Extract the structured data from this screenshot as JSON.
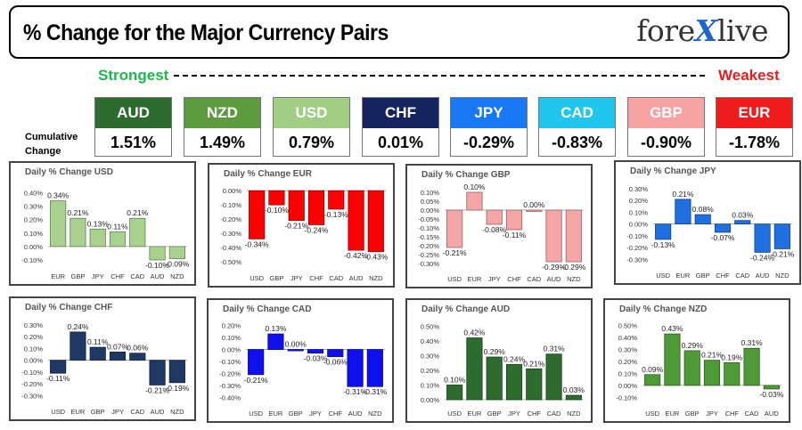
{
  "header": {
    "title": "% Change for the Major Currency Pairs",
    "logo_left": "fore",
    "logo_x": "X",
    "logo_right": "live"
  },
  "legend": {
    "strongest": "Strongest",
    "weakest": "Weakest",
    "cumulative_label": "Cumulative Change"
  },
  "cumulative": [
    {
      "currency": "AUD",
      "value": "1.51%",
      "color": "#2e6b2e"
    },
    {
      "currency": "NZD",
      "value": "1.49%",
      "color": "#5e9a40"
    },
    {
      "currency": "USD",
      "value": "0.79%",
      "color": "#a2cd84"
    },
    {
      "currency": "CHF",
      "value": "0.01%",
      "color": "#15245e"
    },
    {
      "currency": "JPY",
      "value": "-0.29%",
      "color": "#1877f2"
    },
    {
      "currency": "CAD",
      "value": "-0.83%",
      "color": "#20c6ee"
    },
    {
      "currency": "GBP",
      "value": "-0.90%",
      "color": "#f7a3a3"
    },
    {
      "currency": "EUR",
      "value": "-1.78%",
      "color": "#ee1c1c"
    }
  ],
  "chart_data": [
    {
      "type": "bar",
      "title": "Daily % Change USD",
      "color": "#a9d18e",
      "categories": [
        "EUR",
        "GBP",
        "JPY",
        "CHF",
        "CAD",
        "AUD",
        "NZD"
      ],
      "values": [
        0.34,
        0.21,
        0.13,
        0.11,
        0.21,
        -0.1,
        -0.09
      ],
      "labels": [
        "0.34%",
        "0.21%",
        "0.13%",
        "0.11%",
        "0.21%",
        "-0.10%",
        "-0.09%"
      ],
      "yticks": [
        0.4,
        0.3,
        0.2,
        0.1,
        0.0,
        -0.1
      ],
      "ytick_labels": [
        "0.40%",
        "0.30%",
        "0.20%",
        "0.10%",
        "0.00%",
        "-0.10%"
      ],
      "ylim": [
        -0.12,
        0.45
      ]
    },
    {
      "type": "bar",
      "title": "Daily % Change EUR",
      "color": "#ff0000",
      "categories": [
        "USD",
        "GBP",
        "JPY",
        "CHF",
        "CAD",
        "AUD",
        "NZD"
      ],
      "values": [
        -0.34,
        -0.1,
        -0.21,
        -0.24,
        -0.13,
        -0.42,
        -0.43
      ],
      "labels": [
        "-0.34%",
        "-0.10%",
        "-0.21%",
        "-0.24%",
        "-0.13%",
        "-0.42%",
        "-0.43%"
      ],
      "yticks": [
        0.0,
        -0.1,
        -0.2,
        -0.3,
        -0.4,
        -0.5
      ],
      "ytick_labels": [
        "0.00%",
        "-0.10%",
        "-0.20%",
        "-0.30%",
        "-0.40%",
        "-0.50%"
      ],
      "ylim": [
        -0.52,
        0.02
      ]
    },
    {
      "type": "bar",
      "title": "Daily % Change GBP",
      "color": "#f4a6a6",
      "categories": [
        "USD",
        "EUR",
        "JPY",
        "CHF",
        "CAD",
        "AUD",
        "NZD"
      ],
      "values": [
        -0.21,
        0.1,
        -0.08,
        -0.11,
        0.0,
        -0.29,
        -0.29
      ],
      "labels": [
        "-0.21%",
        "0.10%",
        "-0.08%",
        "-0.11%",
        "0.00%",
        "-0.29%",
        "-0.29%"
      ],
      "yticks": [
        0.1,
        0.05,
        0.0,
        -0.05,
        -0.1,
        -0.15,
        -0.2,
        -0.25,
        -0.3
      ],
      "ytick_labels": [
        "0.10%",
        "0.05%",
        "0.00%",
        "-0.05%",
        "-0.10%",
        "-0.15%",
        "-0.20%",
        "-0.25%",
        "-0.30%"
      ],
      "ylim": [
        -0.31,
        0.12
      ]
    },
    {
      "type": "bar",
      "title": "Daily % Change JPY",
      "color": "#1f6fe0",
      "categories": [
        "USD",
        "EUR",
        "GBP",
        "CHF",
        "CAD",
        "AUD",
        "NZD"
      ],
      "values": [
        -0.13,
        0.21,
        0.08,
        -0.07,
        0.03,
        -0.24,
        -0.21
      ],
      "labels": [
        "-0.13%",
        "0.21%",
        "0.08%",
        "-0.07%",
        "0.03%",
        "-0.24%",
        "-0.21%"
      ],
      "yticks": [
        0.3,
        0.2,
        0.1,
        0.0,
        -0.1,
        -0.2,
        -0.3
      ],
      "ytick_labels": [
        "0.30%",
        "0.20%",
        "0.10%",
        "0.00%",
        "-0.10%",
        "-0.20%",
        "-0.30%"
      ],
      "ylim": [
        -0.32,
        0.33
      ]
    },
    {
      "type": "bar",
      "title": "Daily % Change CHF",
      "color": "#1f3864",
      "categories": [
        "USD",
        "EUR",
        "GBP",
        "JPY",
        "CAD",
        "AUD",
        "NZD"
      ],
      "values": [
        -0.11,
        0.24,
        0.11,
        0.07,
        0.06,
        -0.21,
        -0.19
      ],
      "labels": [
        "-0.11%",
        "0.24%",
        "0.11%",
        "0.07%",
        "0.06%",
        "-0.21%",
        "-0.19%"
      ],
      "yticks": [
        0.3,
        0.2,
        0.1,
        0.0,
        -0.1,
        -0.2,
        -0.3
      ],
      "ytick_labels": [
        "0.30%",
        "0.20%",
        "0.10%",
        "0.00%",
        "-0.10%",
        "-0.20%",
        "-0.30%"
      ],
      "ylim": [
        -0.32,
        0.33
      ]
    },
    {
      "type": "bar",
      "title": "Daily % Change CAD",
      "color": "#1010ee",
      "categories": [
        "USD",
        "EUR",
        "GBP",
        "JPY",
        "CHF",
        "AUD",
        "NZD"
      ],
      "values": [
        -0.21,
        0.13,
        0.0,
        -0.03,
        -0.06,
        -0.31,
        -0.31
      ],
      "labels": [
        "-0.21%",
        "0.13%",
        "0.00%",
        "-0.03%",
        "-0.06%",
        "-0.31%",
        "-0.31%"
      ],
      "yticks": [
        0.2,
        0.1,
        0.0,
        -0.1,
        -0.2,
        -0.3,
        -0.4
      ],
      "ytick_labels": [
        "0.20%",
        "0.10%",
        "0.00%",
        "-0.10%",
        "-0.20%",
        "-0.30%",
        "-0.40%"
      ],
      "ylim": [
        -0.42,
        0.22
      ]
    },
    {
      "type": "bar",
      "title": "Daily % Change AUD",
      "color": "#2e6b2e",
      "categories": [
        "USD",
        "EUR",
        "GBP",
        "JPY",
        "CHF",
        "CAD",
        "NZD"
      ],
      "values": [
        0.1,
        0.42,
        0.29,
        0.24,
        0.21,
        0.31,
        0.03
      ],
      "labels": [
        "0.10%",
        "0.42%",
        "0.29%",
        "0.24%",
        "0.21%",
        "0.31%",
        "0.03%"
      ],
      "yticks": [
        0.5,
        0.4,
        0.3,
        0.2,
        0.1,
        0.0
      ],
      "ytick_labels": [
        "0.50%",
        "0.40%",
        "0.30%",
        "0.20%",
        "0.10%",
        "0.00%"
      ],
      "ylim": [
        0.0,
        0.52
      ]
    },
    {
      "type": "bar",
      "title": "Daily % Change NZD",
      "color": "#4e9a36",
      "categories": [
        "USD",
        "EUR",
        "GBP",
        "JPY",
        "CHF",
        "CAD",
        "AUD"
      ],
      "values": [
        0.09,
        0.43,
        0.29,
        0.21,
        0.19,
        0.31,
        -0.03
      ],
      "labels": [
        "0.09%",
        "0.43%",
        "0.29%",
        "0.21%",
        "0.19%",
        "0.31%",
        "-0.03%"
      ],
      "yticks": [
        0.5,
        0.4,
        0.3,
        0.2,
        0.1,
        0.0,
        -0.1
      ],
      "ytick_labels": [
        "0.50%",
        "0.40%",
        "0.30%",
        "0.20%",
        "0.10%",
        "0.00%",
        "-0.10%"
      ],
      "ylim": [
        -0.12,
        0.52
      ]
    }
  ]
}
